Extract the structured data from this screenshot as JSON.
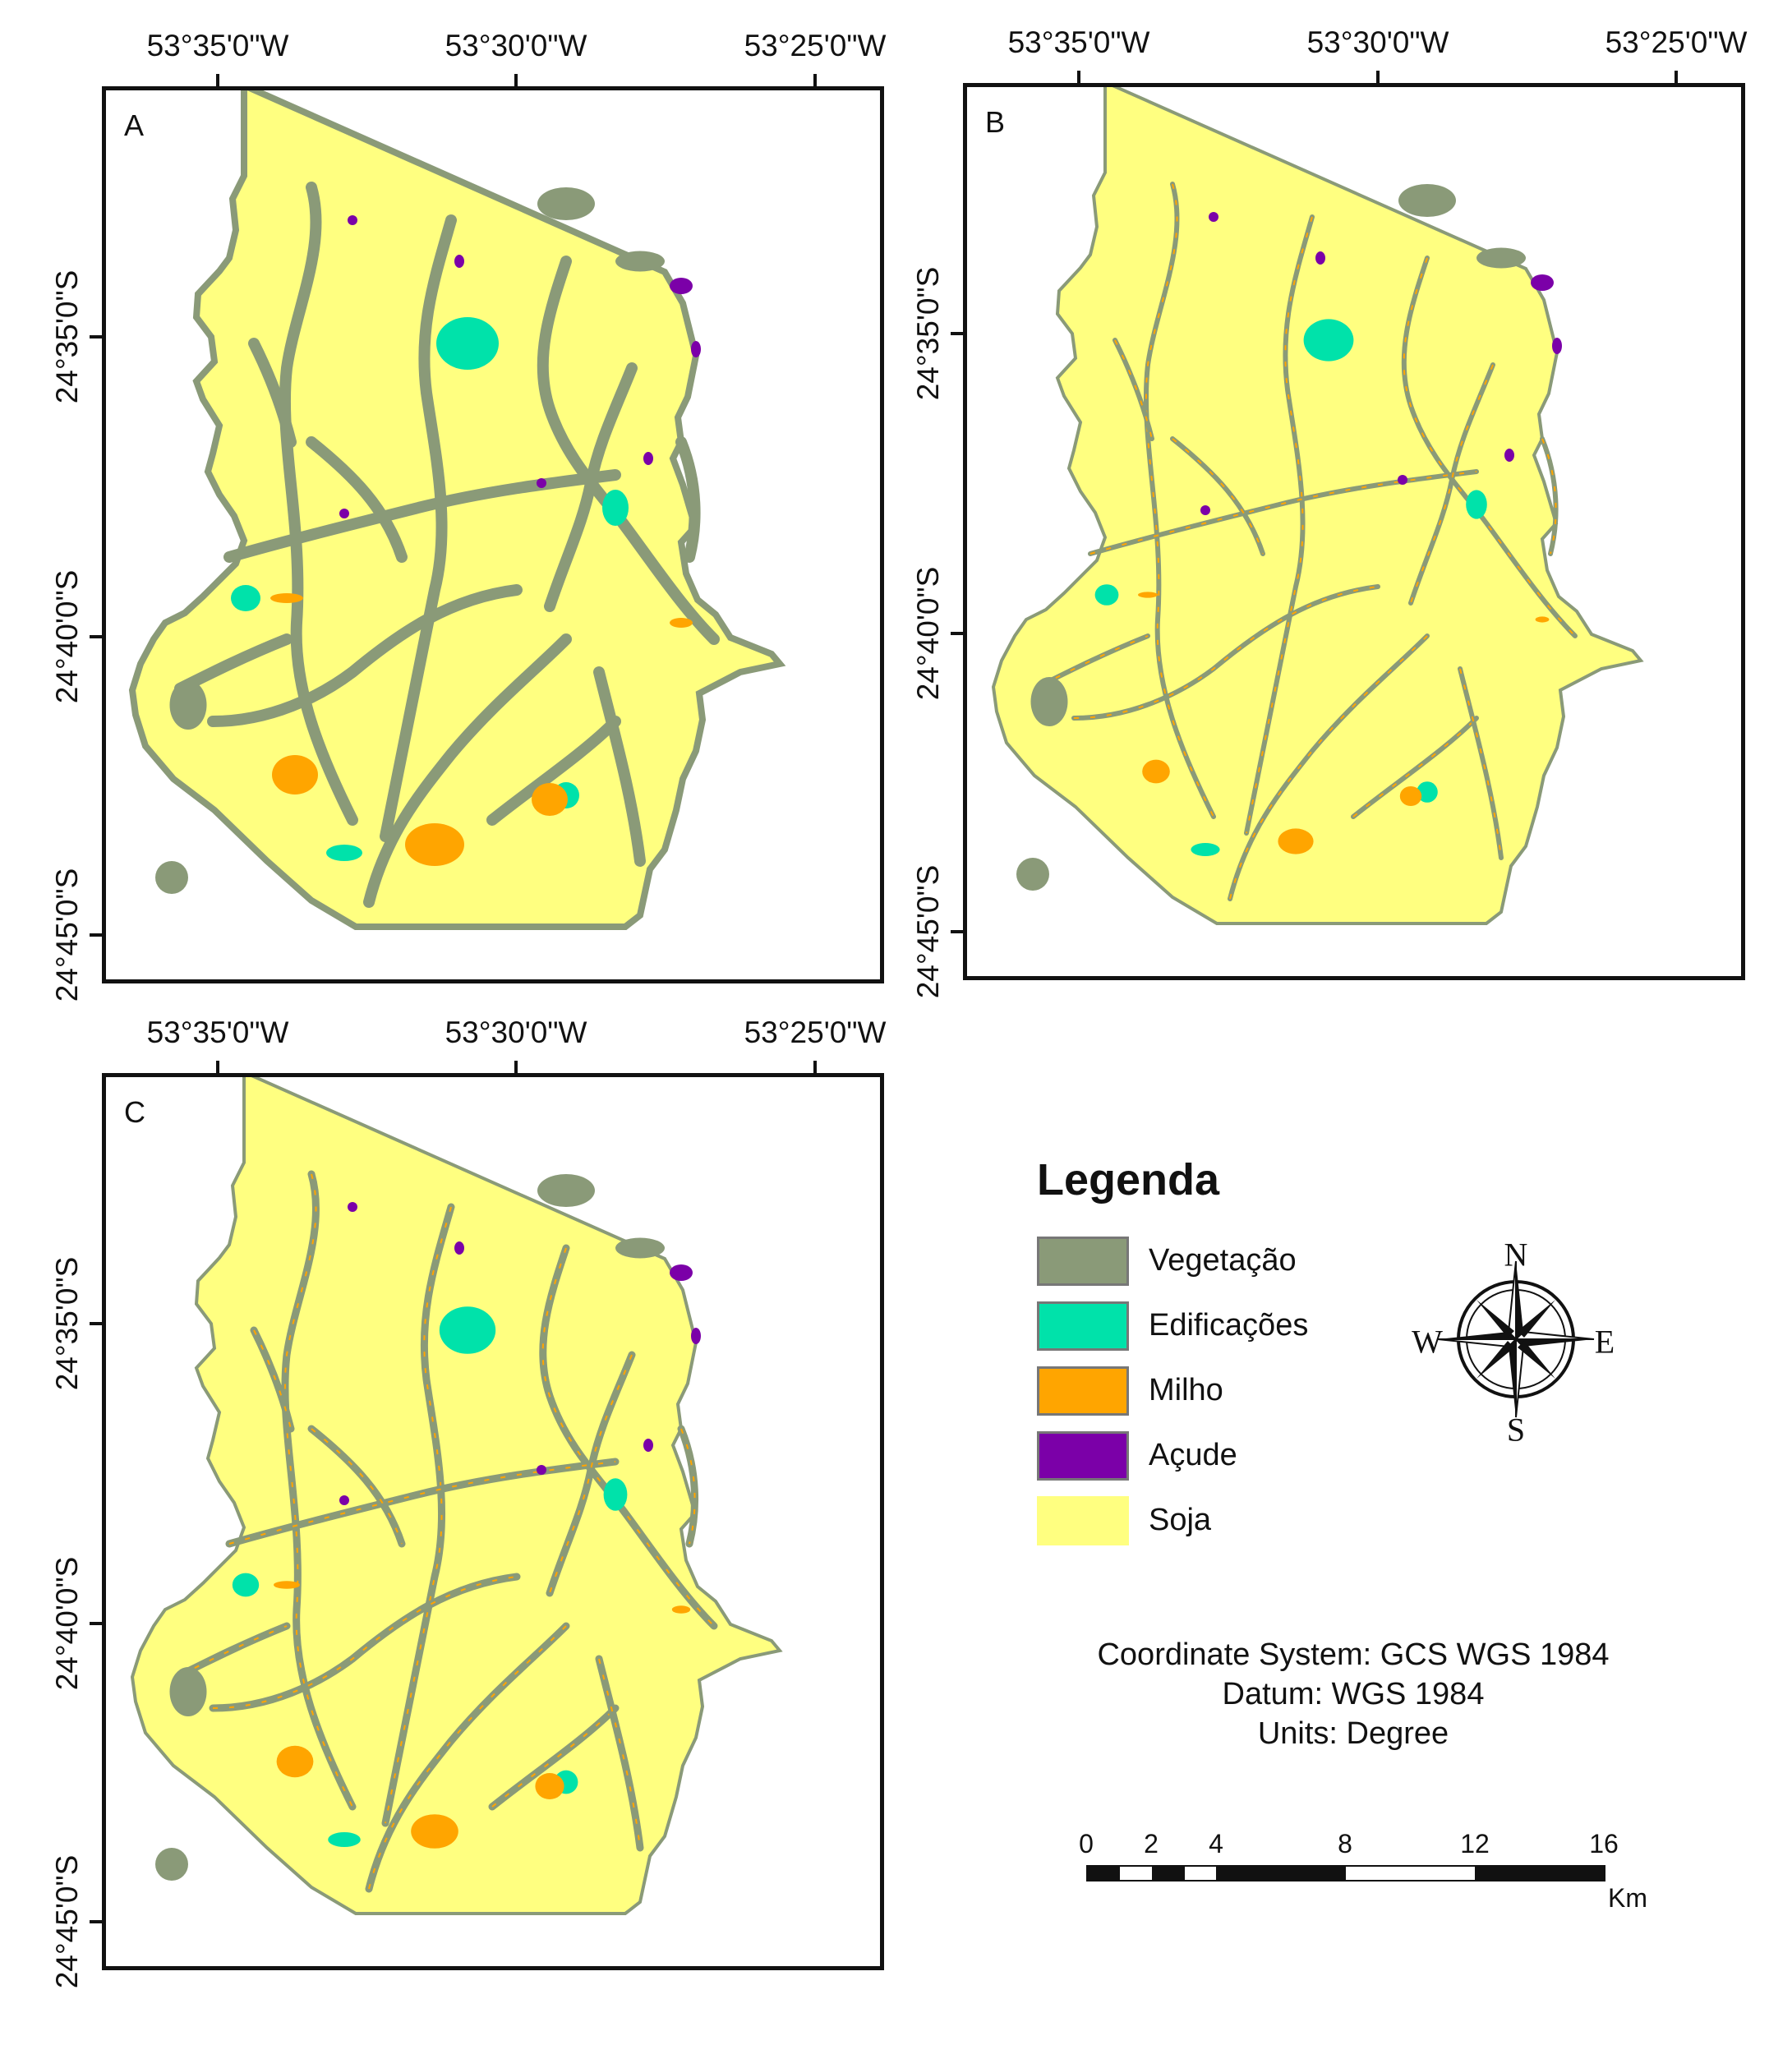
{
  "panels": [
    {
      "label": "A"
    },
    {
      "label": "B"
    },
    {
      "label": "C"
    }
  ],
  "longitude_ticks": [
    "53°35'0\"W",
    "53°30'0\"W",
    "53°25'0\"W"
  ],
  "latitude_ticks": [
    "24°35'0\"S",
    "24°40'0\"S",
    "24°45'0\"S"
  ],
  "legend": {
    "title": "Legenda",
    "items": [
      {
        "label": "Vegetação",
        "color": "#8a9a78"
      },
      {
        "label": "Edificações",
        "color": "#00e2aa"
      },
      {
        "label": "Milho",
        "color": "#ffa500"
      },
      {
        "label": "Açude",
        "color": "#7b00a8"
      },
      {
        "label": "Soja",
        "color": "#ffff80"
      }
    ]
  },
  "compass": {
    "n": "N",
    "s": "S",
    "e": "E",
    "w": "W"
  },
  "coordinate_info": {
    "line1": "Coordinate System: GCS WGS 1984",
    "line2": "Datum: WGS 1984",
    "line3": "Units: Degree"
  },
  "scale_bar": {
    "labels": [
      "0",
      "2",
      "4",
      "8",
      "12",
      "16"
    ],
    "unit": "Km"
  },
  "colors": {
    "soja": "#ffff80",
    "vegetacao": "#8a9a78",
    "edificacoes": "#00e2aa",
    "milho": "#ffa500",
    "acude": "#7b00a8"
  }
}
